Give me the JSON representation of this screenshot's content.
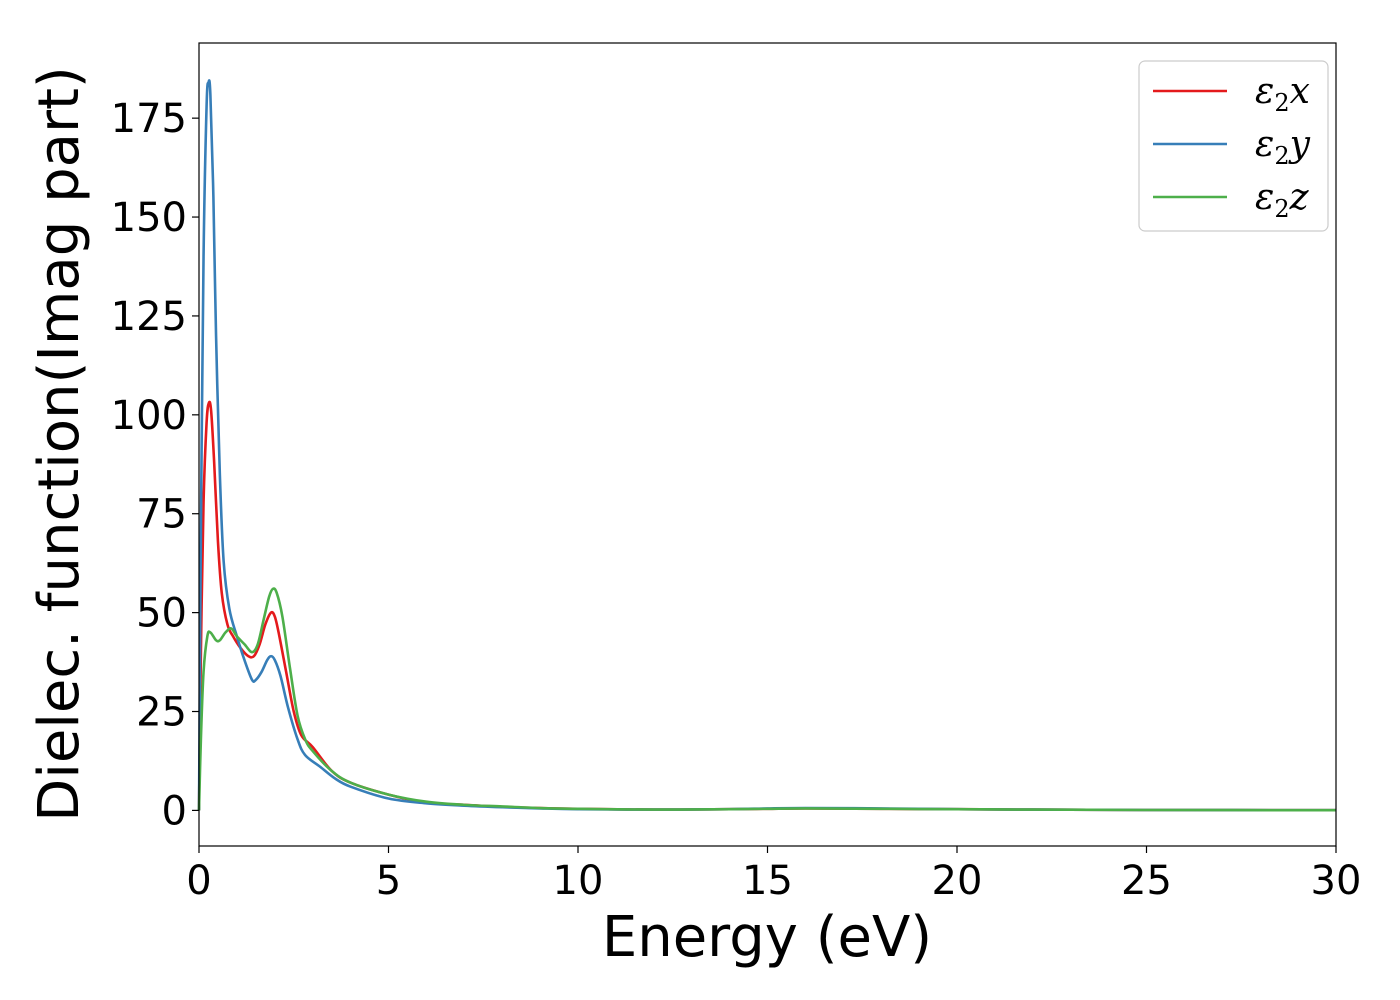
{
  "chart_data": {
    "type": "line",
    "title": "",
    "xlabel": "Energy (eV)",
    "ylabel": "Dielec. function(Imag part)",
    "xlim": [
      0,
      30
    ],
    "ylim": [
      -9,
      194
    ],
    "xticks": [
      0,
      5,
      10,
      15,
      20,
      25,
      30
    ],
    "yticks": [
      0,
      25,
      50,
      75,
      100,
      125,
      150,
      175
    ],
    "grid": false,
    "legend_position": "top-right",
    "series": [
      {
        "name": "ε2x",
        "legend_base": "ε",
        "legend_sub": "2",
        "legend_suffix": "x",
        "color": "#e41a1c",
        "points": [
          [
            0,
            0
          ],
          [
            0.05,
            40
          ],
          [
            0.12,
            78
          ],
          [
            0.2,
            98
          ],
          [
            0.26,
            103
          ],
          [
            0.32,
            101
          ],
          [
            0.4,
            88
          ],
          [
            0.5,
            68
          ],
          [
            0.6,
            55
          ],
          [
            0.75,
            47
          ],
          [
            0.9,
            44
          ],
          [
            1.1,
            41
          ],
          [
            1.3,
            39
          ],
          [
            1.45,
            39
          ],
          [
            1.6,
            42
          ],
          [
            1.75,
            47
          ],
          [
            1.9,
            50
          ],
          [
            2.0,
            49
          ],
          [
            2.1,
            45
          ],
          [
            2.3,
            35
          ],
          [
            2.5,
            25
          ],
          [
            2.7,
            19
          ],
          [
            3.0,
            16
          ],
          [
            3.5,
            10
          ],
          [
            4,
            7
          ],
          [
            5,
            4
          ],
          [
            6,
            2
          ],
          [
            7,
            1.4
          ],
          [
            8,
            0.9
          ],
          [
            9,
            0.6
          ],
          [
            10,
            0.4
          ],
          [
            12,
            0.2
          ],
          [
            14,
            0.3
          ],
          [
            15,
            0.4
          ],
          [
            16,
            0.5
          ],
          [
            18,
            0.4
          ],
          [
            20,
            0.3
          ],
          [
            22,
            0.2
          ],
          [
            25,
            0.1
          ],
          [
            30,
            0.05
          ]
        ]
      },
      {
        "name": "ε2y",
        "legend_base": "ε",
        "legend_sub": "2",
        "legend_suffix": "y",
        "color": "#377eb8",
        "points": [
          [
            0,
            0
          ],
          [
            0.05,
            70
          ],
          [
            0.12,
            140
          ],
          [
            0.2,
            178
          ],
          [
            0.25,
            184
          ],
          [
            0.3,
            181
          ],
          [
            0.38,
            155
          ],
          [
            0.45,
            120
          ],
          [
            0.55,
            85
          ],
          [
            0.65,
            63
          ],
          [
            0.8,
            51
          ],
          [
            1.0,
            44
          ],
          [
            1.2,
            38
          ],
          [
            1.4,
            33
          ],
          [
            1.5,
            33
          ],
          [
            1.65,
            35
          ],
          [
            1.8,
            38
          ],
          [
            1.9,
            39
          ],
          [
            2.0,
            38
          ],
          [
            2.15,
            34
          ],
          [
            2.35,
            26
          ],
          [
            2.6,
            18
          ],
          [
            2.8,
            14
          ],
          [
            3.2,
            11
          ],
          [
            3.6,
            8
          ],
          [
            4,
            6
          ],
          [
            5,
            3
          ],
          [
            6,
            1.8
          ],
          [
            7,
            1.2
          ],
          [
            8,
            0.8
          ],
          [
            9,
            0.5
          ],
          [
            10,
            0.3
          ],
          [
            12,
            0.2
          ],
          [
            14,
            0.3
          ],
          [
            15,
            0.5
          ],
          [
            16,
            0.6
          ],
          [
            18,
            0.5
          ],
          [
            20,
            0.3
          ],
          [
            22,
            0.2
          ],
          [
            25,
            0.1
          ],
          [
            30,
            0.05
          ]
        ]
      },
      {
        "name": "ε2z",
        "legend_base": "ε",
        "legend_sub": "2",
        "legend_suffix": "z",
        "color": "#4daf4a",
        "points": [
          [
            0,
            0
          ],
          [
            0.05,
            18
          ],
          [
            0.12,
            35
          ],
          [
            0.22,
            44
          ],
          [
            0.3,
            45
          ],
          [
            0.45,
            43
          ],
          [
            0.55,
            43
          ],
          [
            0.7,
            45
          ],
          [
            0.85,
            46
          ],
          [
            1.0,
            44
          ],
          [
            1.2,
            42
          ],
          [
            1.4,
            40
          ],
          [
            1.55,
            42
          ],
          [
            1.7,
            48
          ],
          [
            1.85,
            54
          ],
          [
            1.95,
            56
          ],
          [
            2.05,
            55
          ],
          [
            2.2,
            49
          ],
          [
            2.4,
            36
          ],
          [
            2.6,
            24
          ],
          [
            2.8,
            18
          ],
          [
            3.0,
            15
          ],
          [
            3.5,
            10
          ],
          [
            4,
            7
          ],
          [
            5,
            4
          ],
          [
            6,
            2.2
          ],
          [
            7,
            1.4
          ],
          [
            8,
            1
          ],
          [
            9,
            0.6
          ],
          [
            10,
            0.4
          ],
          [
            12,
            0.2
          ],
          [
            14,
            0.3
          ],
          [
            15,
            0.4
          ],
          [
            16,
            0.5
          ],
          [
            18,
            0.4
          ],
          [
            20,
            0.3
          ],
          [
            22,
            0.2
          ],
          [
            25,
            0.1
          ],
          [
            30,
            0.05
          ]
        ]
      }
    ]
  }
}
